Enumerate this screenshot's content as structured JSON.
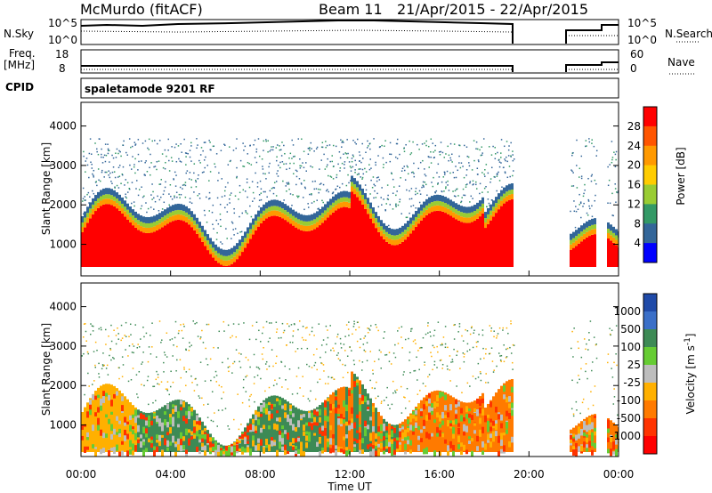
{
  "header": {
    "station": "McMurdo (fitACF)",
    "beam": "Beam 11",
    "date_range": "21/Apr/2015 - 22/Apr/2015"
  },
  "summary_panels": {
    "nsky_label": "N.Sky",
    "nsky_ticks": [
      "10^5",
      "10^0"
    ],
    "nsearch_label": "N.Search",
    "nsearch_ticks": [
      "10^5",
      "10^0"
    ],
    "freq_label_line1": "Freq.",
    "freq_label_line2": "[MHz]",
    "freq_ticks": [
      "18",
      "8"
    ],
    "nave_label": "Nave",
    "nave_ticks": [
      "60",
      "0"
    ],
    "cpid_label": "CPID",
    "cpid_value": "spaletamode 9201 RF"
  },
  "chart_data": [
    {
      "type": "heatmap",
      "name": "power",
      "xlabel": "",
      "ylabel": "Slant Range [km]",
      "x_ticks": [
        "00:00",
        "04:00",
        "08:00",
        "12:00",
        "16:00",
        "20:00",
        "00:00"
      ],
      "y_ticks": [
        "1000",
        "2000",
        "3000",
        "4000"
      ],
      "ylim": [
        200,
        4600
      ],
      "colorbar": {
        "label": "Power [dB]",
        "ticks": [
          "28",
          "24",
          "20",
          "16",
          "12",
          "8",
          "4"
        ],
        "colors": [
          "#ff0000",
          "#ff5500",
          "#ff9900",
          "#ffcc00",
          "#99cc33",
          "#339966",
          "#336699",
          "#0000ff"
        ]
      },
      "data_gap_hours": [
        19.2,
        21.8
      ]
    },
    {
      "type": "heatmap",
      "name": "velocity",
      "xlabel": "Time UT",
      "ylabel": "Slant Range [km]",
      "x_ticks": [
        "00:00",
        "04:00",
        "08:00",
        "12:00",
        "16:00",
        "20:00",
        "00:00"
      ],
      "y_ticks": [
        "1000",
        "2000",
        "3000",
        "4000"
      ],
      "ylim": [
        200,
        4600
      ],
      "colorbar": {
        "label": "Velocity [m s",
        "label_sup": "-1",
        "label_close": "]",
        "ticks": [
          "1000",
          "500",
          "100",
          "25",
          "-25",
          "-100",
          "-500",
          "-1000"
        ],
        "colors": [
          "#1f4aa8",
          "#3a6fc8",
          "#3d8a55",
          "#66cc33",
          "#bdbdbd",
          "#ffb000",
          "#ff7a00",
          "#ff3300",
          "#ff0000"
        ]
      },
      "data_gap_hours": [
        19.2,
        21.8
      ]
    }
  ]
}
